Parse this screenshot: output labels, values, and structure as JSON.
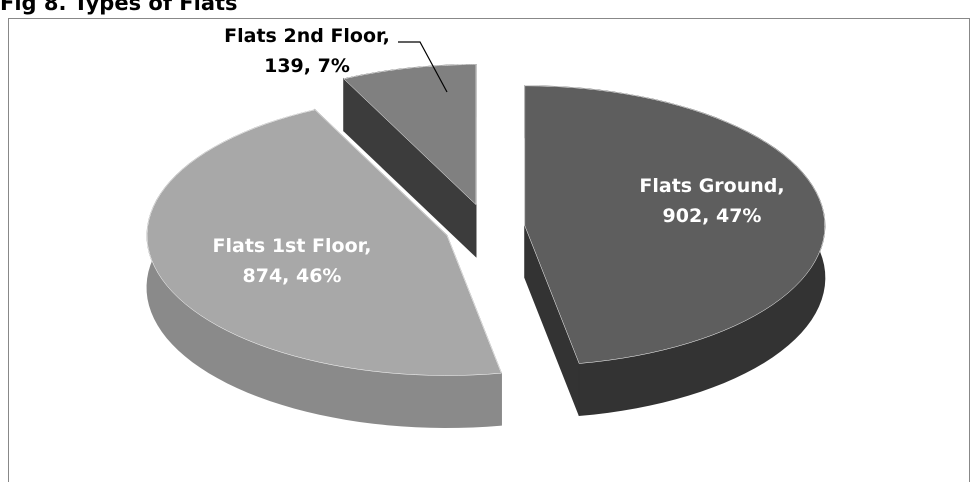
{
  "chart_data": {
    "type": "pie",
    "title": "Fig 8. Types of Flats",
    "categories": [
      "Flats Ground,",
      "Flats 1st Floor,",
      "Flats 2nd Floor,"
    ],
    "values": [
      902,
      874,
      139
    ],
    "value_labels": [
      "902, 47%",
      "874, 46%",
      "139, 7%"
    ],
    "colors": [
      "#5e5e5e",
      "#a8a8a8",
      "#808080"
    ],
    "side_colors": [
      "#333333",
      "#8a8a8a",
      "#3c3c3c"
    ],
    "explode": true
  }
}
